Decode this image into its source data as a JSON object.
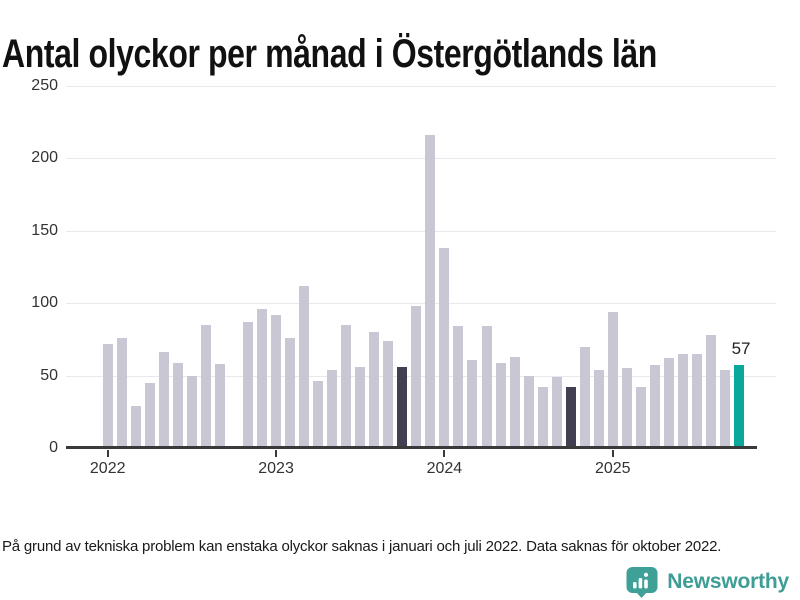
{
  "title": "Antal olyckor per månad i Östergötlands län",
  "footnote": "På grund av tekniska problem kan enstaka olyckor saknas i januari och juli 2022. Data saknas för oktober 2022.",
  "branding": {
    "name": "Newsworthy",
    "icon": "bar-chart-speech-bubble-icon",
    "icon_color": "#3EA096",
    "text_color": "#3E9D95"
  },
  "colors": {
    "bar_default": "#C9C7D4",
    "bar_highlight_dark": "#413F51",
    "bar_latest_teal": "#0AA79D",
    "gridline": "#E9E8EC",
    "axis": "#3A3A3A",
    "tick_text": "#333333",
    "title_text": "#111111"
  },
  "chart_data": {
    "type": "bar",
    "title": "Antal olyckor per månad i Östergötlands län",
    "xlabel": "",
    "ylabel": "",
    "ylim": [
      0,
      250
    ],
    "y_ticks": [
      0,
      50,
      100,
      150,
      200,
      250
    ],
    "grid": "horizontal",
    "legend": "none",
    "x_ticks": [
      {
        "label": "2022",
        "month_index": 0
      },
      {
        "label": "2023",
        "month_index": 12
      },
      {
        "label": "2024",
        "month_index": 24
      },
      {
        "label": "2025",
        "month_index": 36
      }
    ],
    "labels": [
      "2022-01",
      "2022-02",
      "2022-03",
      "2022-04",
      "2022-05",
      "2022-06",
      "2022-07",
      "2022-08",
      "2022-09",
      "2022-10",
      "2022-11",
      "2022-12",
      "2023-01",
      "2023-02",
      "2023-03",
      "2023-04",
      "2023-05",
      "2023-06",
      "2023-07",
      "2023-08",
      "2023-09",
      "2023-10",
      "2023-11",
      "2023-12",
      "2024-01",
      "2024-02",
      "2024-03",
      "2024-04",
      "2024-05",
      "2024-06",
      "2024-07",
      "2024-08",
      "2024-09",
      "2024-10",
      "2024-11",
      "2024-12",
      "2025-01",
      "2025-02",
      "2025-03",
      "2025-04",
      "2025-05",
      "2025-06",
      "2025-07",
      "2025-08",
      "2025-09",
      "2025-10"
    ],
    "values": [
      72,
      76,
      29,
      45,
      66,
      59,
      50,
      85,
      58,
      null,
      87,
      96,
      92,
      76,
      112,
      46,
      54,
      85,
      56,
      80,
      74,
      56,
      98,
      216,
      138,
      84,
      61,
      84,
      59,
      63,
      50,
      42,
      49,
      42,
      70,
      54,
      94,
      55,
      42,
      57,
      62,
      65,
      65,
      78,
      54,
      57
    ],
    "missing_months": [
      "2022-10"
    ],
    "highlight_dark": [
      "2023-10",
      "2024-10"
    ],
    "highlight_latest": "2025-10",
    "annotation": {
      "text": "57",
      "month": "2025-10"
    }
  }
}
